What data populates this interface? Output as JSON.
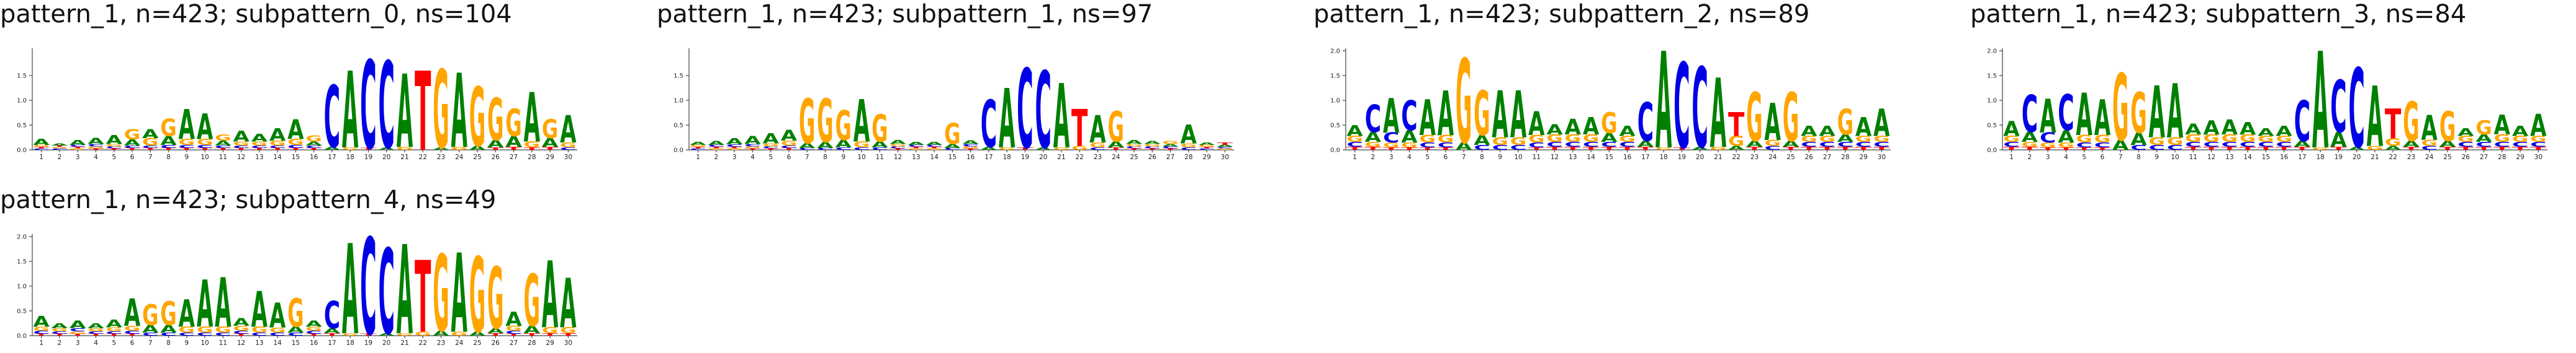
{
  "colors": {
    "A": "#008000",
    "C": "#0000e6",
    "G": "#ffa500",
    "T": "#ff0000"
  },
  "chart_data": [
    {
      "type": "logo",
      "title": "pattern_1, n=423; subpattern_0, ns=104",
      "ylim": [
        0,
        2.0
      ],
      "yticks": [
        "0.0",
        "0.5",
        "1.0",
        "1.5"
      ],
      "positions": [
        "1",
        "2",
        "3",
        "4",
        "5",
        "6",
        "7",
        "8",
        "9",
        "10",
        "11",
        "12",
        "13",
        "14",
        "15",
        "16",
        "17",
        "18",
        "19",
        "20",
        "21",
        "22",
        "23",
        "24",
        "25",
        "26",
        "27",
        "28",
        "29",
        "30"
      ],
      "letters": [
        {
          "A": 0.12,
          "G": 0.04,
          "C": 0.03,
          "T": 0.03
        },
        {
          "A": 0.04,
          "C": 0.03,
          "G": 0.03,
          "T": 0.03
        },
        {
          "A": 0.1,
          "C": 0.04,
          "G": 0.03,
          "T": 0.03
        },
        {
          "A": 0.12,
          "C": 0.05,
          "G": 0.04,
          "T": 0.03
        },
        {
          "A": 0.18,
          "G": 0.05,
          "C": 0.04,
          "T": 0.03
        },
        {
          "G": 0.2,
          "A": 0.12,
          "C": 0.05,
          "T": 0.04
        },
        {
          "A": 0.18,
          "G": 0.15,
          "C": 0.05,
          "T": 0.04
        },
        {
          "G": 0.35,
          "A": 0.18,
          "C": 0.06,
          "T": 0.04
        },
        {
          "A": 0.6,
          "G": 0.12,
          "C": 0.06,
          "T": 0.04
        },
        {
          "A": 0.52,
          "G": 0.12,
          "C": 0.06,
          "T": 0.04
        },
        {
          "G": 0.12,
          "A": 0.1,
          "C": 0.05,
          "T": 0.04
        },
        {
          "A": 0.22,
          "G": 0.08,
          "C": 0.05,
          "T": 0.04
        },
        {
          "A": 0.15,
          "G": 0.08,
          "C": 0.05,
          "T": 0.04
        },
        {
          "A": 0.25,
          "G": 0.1,
          "C": 0.05,
          "T": 0.04
        },
        {
          "A": 0.4,
          "G": 0.12,
          "C": 0.06,
          "T": 0.04
        },
        {
          "G": 0.12,
          "A": 0.08,
          "C": 0.05,
          "T": 0.04
        },
        {
          "C": 1.25,
          "A": 0.06
        },
        {
          "A": 1.55,
          "G": 0.05
        },
        {
          "C": 1.78,
          "T": 0.04
        },
        {
          "C": 1.75,
          "A": 0.05
        },
        {
          "A": 1.48,
          "G": 0.06
        },
        {
          "T": 1.6
        },
        {
          "G": 1.58,
          "A": 0.05
        },
        {
          "A": 1.5,
          "G": 0.06
        },
        {
          "G": 1.2,
          "A": 0.08
        },
        {
          "G": 0.85,
          "A": 0.15,
          "T": 0.05
        },
        {
          "G": 0.55,
          "A": 0.22,
          "T": 0.06
        },
        {
          "A": 1.0,
          "G": 0.12,
          "T": 0.05
        },
        {
          "G": 0.38,
          "A": 0.18,
          "T": 0.06
        },
        {
          "A": 0.55,
          "G": 0.1,
          "C": 0.05
        }
      ]
    },
    {
      "type": "logo",
      "title": "pattern_1, n=423; subpattern_1, ns=97",
      "ylim": [
        0,
        2.0
      ],
      "yticks": [
        "0.0",
        "0.5",
        "1.0",
        "1.5"
      ],
      "positions": [
        "1",
        "2",
        "3",
        "4",
        "5",
        "6",
        "7",
        "8",
        "9",
        "10",
        "11",
        "12",
        "13",
        "14",
        "15",
        "16",
        "17",
        "18",
        "19",
        "20",
        "21",
        "22",
        "23",
        "24",
        "25",
        "26",
        "27",
        "28",
        "29",
        "30"
      ],
      "letters": [
        {
          "A": 0.06,
          "G": 0.04,
          "C": 0.03,
          "T": 0.03
        },
        {
          "A": 0.08,
          "C": 0.04,
          "G": 0.03,
          "T": 0.03
        },
        {
          "A": 0.12,
          "C": 0.05,
          "G": 0.03,
          "T": 0.03
        },
        {
          "A": 0.16,
          "C": 0.05,
          "G": 0.04,
          "T": 0.03
        },
        {
          "A": 0.2,
          "G": 0.06,
          "C": 0.04,
          "T": 0.03
        },
        {
          "A": 0.22,
          "G": 0.1,
          "C": 0.05,
          "T": 0.04
        },
        {
          "G": 0.9,
          "A": 0.1,
          "C": 0.04
        },
        {
          "G": 0.88,
          "A": 0.12,
          "C": 0.04
        },
        {
          "G": 0.6,
          "A": 0.15,
          "C": 0.05
        },
        {
          "A": 0.85,
          "G": 0.12,
          "C": 0.05
        },
        {
          "G": 0.55,
          "A": 0.12,
          "C": 0.05
        },
        {
          "A": 0.08,
          "G": 0.05,
          "C": 0.04,
          "T": 0.03
        },
        {
          "A": 0.06,
          "C": 0.04,
          "G": 0.03,
          "T": 0.03
        },
        {
          "A": 0.06,
          "C": 0.04,
          "G": 0.03,
          "T": 0.03
        },
        {
          "G": 0.42,
          "A": 0.08,
          "C": 0.04
        },
        {
          "A": 0.07,
          "C": 0.05,
          "G": 0.04,
          "T": 0.03
        },
        {
          "C": 0.95,
          "A": 0.06
        },
        {
          "A": 1.2,
          "G": 0.05
        },
        {
          "C": 1.6,
          "T": 0.05
        },
        {
          "C": 1.55,
          "A": 0.05
        },
        {
          "A": 1.3,
          "G": 0.05
        },
        {
          "T": 0.75,
          "G": 0.08
        },
        {
          "A": 0.55,
          "G": 0.1,
          "C": 0.05
        },
        {
          "G": 0.62,
          "A": 0.12,
          "T": 0.05
        },
        {
          "A": 0.08,
          "G": 0.05,
          "C": 0.04,
          "T": 0.03
        },
        {
          "A": 0.06,
          "G": 0.05,
          "C": 0.04,
          "T": 0.03
        },
        {
          "G": 0.06,
          "A": 0.05,
          "C": 0.04,
          "T": 0.03
        },
        {
          "A": 0.38,
          "G": 0.08,
          "C": 0.05
        },
        {
          "A": 0.05,
          "G": 0.04,
          "C": 0.03,
          "T": 0.03
        },
        {
          "T": 0.05,
          "A": 0.04,
          "G": 0.03,
          "C": 0.03
        }
      ]
    },
    {
      "type": "logo",
      "title": "pattern_1, n=423; subpattern_2, ns=89",
      "ylim": [
        0,
        2.0
      ],
      "yticks": [
        "0.0",
        "0.5",
        "1.0",
        "1.5",
        "2.0"
      ],
      "positions": [
        "1",
        "2",
        "3",
        "4",
        "5",
        "6",
        "7",
        "8",
        "9",
        "10",
        "11",
        "12",
        "13",
        "14",
        "15",
        "16",
        "17",
        "18",
        "19",
        "20",
        "21",
        "22",
        "23",
        "24",
        "25",
        "26",
        "27",
        "28",
        "29",
        "30"
      ],
      "letters": [
        {
          "A": 0.22,
          "G": 0.12,
          "C": 0.1,
          "T": 0.06
        },
        {
          "C": 0.55,
          "A": 0.2,
          "G": 0.1,
          "T": 0.06
        },
        {
          "A": 0.7,
          "C": 0.2,
          "G": 0.1,
          "T": 0.05
        },
        {
          "C": 0.6,
          "A": 0.25,
          "G": 0.1,
          "T": 0.05
        },
        {
          "A": 0.72,
          "G": 0.15,
          "C": 0.1,
          "T": 0.05
        },
        {
          "A": 0.9,
          "G": 0.15,
          "C": 0.1,
          "T": 0.05
        },
        {
          "G": 1.7,
          "A": 0.15
        },
        {
          "G": 0.9,
          "A": 0.2,
          "C": 0.1
        },
        {
          "A": 0.95,
          "G": 0.15,
          "C": 0.1
        },
        {
          "A": 0.95,
          "G": 0.15,
          "C": 0.1
        },
        {
          "A": 0.48,
          "G": 0.15,
          "C": 0.1,
          "T": 0.05
        },
        {
          "A": 0.2,
          "G": 0.15,
          "C": 0.1,
          "T": 0.06
        },
        {
          "A": 0.32,
          "G": 0.15,
          "C": 0.1,
          "T": 0.06
        },
        {
          "A": 0.35,
          "G": 0.15,
          "C": 0.1,
          "T": 0.06
        },
        {
          "G": 0.42,
          "A": 0.18,
          "C": 0.1,
          "T": 0.06
        },
        {
          "A": 0.2,
          "G": 0.12,
          "C": 0.1,
          "T": 0.06
        },
        {
          "C": 0.78,
          "A": 0.12,
          "T": 0.06
        },
        {
          "A": 1.95,
          "G": 0.05
        },
        {
          "C": 1.72,
          "T": 0.05
        },
        {
          "C": 1.62,
          "A": 0.06
        },
        {
          "A": 1.4,
          "G": 0.06
        },
        {
          "T": 0.48,
          "G": 0.2,
          "A": 0.08
        },
        {
          "G": 0.98,
          "A": 0.12,
          "T": 0.06
        },
        {
          "A": 0.75,
          "G": 0.12,
          "C": 0.08
        },
        {
          "G": 0.98,
          "A": 0.12,
          "T": 0.06
        },
        {
          "A": 0.2,
          "G": 0.12,
          "C": 0.1,
          "T": 0.06
        },
        {
          "A": 0.2,
          "G": 0.12,
          "C": 0.1,
          "T": 0.06
        },
        {
          "G": 0.52,
          "A": 0.15,
          "C": 0.1,
          "T": 0.06
        },
        {
          "A": 0.38,
          "G": 0.12,
          "C": 0.1,
          "T": 0.06
        },
        {
          "A": 0.55,
          "G": 0.12,
          "C": 0.1,
          "T": 0.06
        }
      ]
    },
    {
      "type": "logo",
      "title": "pattern_1, n=423; subpattern_3, ns=84",
      "ylim": [
        0,
        2.0
      ],
      "yticks": [
        "0.0",
        "0.5",
        "1.0",
        "1.5",
        "2.0"
      ],
      "positions": [
        "1",
        "2",
        "3",
        "4",
        "5",
        "6",
        "7",
        "8",
        "9",
        "10",
        "11",
        "12",
        "13",
        "14",
        "15",
        "16",
        "17",
        "18",
        "19",
        "20",
        "21",
        "22",
        "23",
        "24",
        "25",
        "26",
        "27",
        "28",
        "29",
        "30"
      ],
      "letters": [
        {
          "A": 0.3,
          "G": 0.12,
          "C": 0.1,
          "T": 0.06
        },
        {
          "C": 0.75,
          "A": 0.2,
          "G": 0.1,
          "T": 0.06
        },
        {
          "A": 0.68,
          "C": 0.2,
          "G": 0.1,
          "T": 0.05
        },
        {
          "C": 0.72,
          "A": 0.25,
          "G": 0.1,
          "T": 0.05
        },
        {
          "A": 0.85,
          "G": 0.15,
          "C": 0.1,
          "T": 0.05
        },
        {
          "A": 0.72,
          "G": 0.15,
          "C": 0.1,
          "T": 0.05
        },
        {
          "G": 1.35,
          "A": 0.2
        },
        {
          "G": 0.82,
          "A": 0.25,
          "C": 0.1
        },
        {
          "A": 1.05,
          "G": 0.15,
          "C": 0.1
        },
        {
          "A": 1.1,
          "G": 0.15,
          "C": 0.1
        },
        {
          "A": 0.22,
          "G": 0.15,
          "C": 0.1,
          "T": 0.06
        },
        {
          "A": 0.28,
          "G": 0.15,
          "C": 0.1,
          "T": 0.06
        },
        {
          "A": 0.3,
          "G": 0.15,
          "C": 0.1,
          "T": 0.06
        },
        {
          "A": 0.25,
          "G": 0.15,
          "C": 0.1,
          "T": 0.06
        },
        {
          "A": 0.15,
          "G": 0.12,
          "C": 0.1,
          "T": 0.06
        },
        {
          "A": 0.2,
          "G": 0.12,
          "C": 0.1,
          "T": 0.06
        },
        {
          "C": 0.82,
          "A": 0.12,
          "T": 0.06
        },
        {
          "A": 1.95,
          "G": 0.05
        },
        {
          "C": 1.05,
          "A": 0.3,
          "T": 0.06
        },
        {
          "C": 1.6,
          "A": 0.06
        },
        {
          "A": 1.22,
          "G": 0.08
        },
        {
          "T": 0.6,
          "G": 0.15,
          "A": 0.08
        },
        {
          "G": 0.8,
          "A": 0.12,
          "T": 0.06
        },
        {
          "A": 0.5,
          "G": 0.12,
          "C": 0.08
        },
        {
          "G": 0.6,
          "A": 0.12,
          "T": 0.06
        },
        {
          "A": 0.15,
          "G": 0.12,
          "C": 0.1,
          "T": 0.06
        },
        {
          "G": 0.28,
          "A": 0.15,
          "C": 0.1,
          "T": 0.06
        },
        {
          "A": 0.4,
          "G": 0.15,
          "C": 0.1,
          "T": 0.06
        },
        {
          "A": 0.2,
          "G": 0.12,
          "C": 0.1,
          "T": 0.06
        },
        {
          "A": 0.45,
          "G": 0.12,
          "C": 0.1,
          "T": 0.06
        }
      ]
    },
    {
      "type": "logo",
      "title": "pattern_1, n=423; subpattern_4, ns=49",
      "ylim": [
        0,
        2.0
      ],
      "yticks": [
        "0.0",
        "0.5",
        "1.0",
        "1.5",
        "2.0"
      ],
      "positions": [
        "1",
        "2",
        "3",
        "4",
        "5",
        "6",
        "7",
        "8",
        "9",
        "10",
        "11",
        "12",
        "13",
        "14",
        "15",
        "16",
        "17",
        "18",
        "19",
        "20",
        "21",
        "22",
        "23",
        "24",
        "25",
        "26",
        "27",
        "28",
        "29",
        "30"
      ],
      "letters": [
        {
          "A": 0.22,
          "G": 0.08,
          "C": 0.06,
          "T": 0.04
        },
        {
          "A": 0.1,
          "G": 0.06,
          "C": 0.05,
          "T": 0.04
        },
        {
          "A": 0.15,
          "C": 0.06,
          "G": 0.05,
          "T": 0.04
        },
        {
          "A": 0.1,
          "G": 0.06,
          "C": 0.05,
          "T": 0.04
        },
        {
          "A": 0.15,
          "G": 0.08,
          "C": 0.05,
          "T": 0.04
        },
        {
          "A": 0.55,
          "G": 0.1,
          "C": 0.06,
          "T": 0.04
        },
        {
          "G": 0.42,
          "A": 0.15,
          "C": 0.06
        },
        {
          "G": 0.48,
          "A": 0.15,
          "C": 0.06
        },
        {
          "A": 0.55,
          "G": 0.12,
          "C": 0.06
        },
        {
          "A": 0.95,
          "G": 0.12,
          "C": 0.06
        },
        {
          "A": 1.0,
          "G": 0.12,
          "C": 0.06
        },
        {
          "A": 0.15,
          "G": 0.1,
          "C": 0.06,
          "T": 0.04
        },
        {
          "A": 0.72,
          "G": 0.12,
          "C": 0.06
        },
        {
          "A": 0.5,
          "G": 0.1,
          "C": 0.06
        },
        {
          "G": 0.58,
          "A": 0.12,
          "C": 0.06
        },
        {
          "A": 0.12,
          "G": 0.08,
          "C": 0.06,
          "T": 0.04
        },
        {
          "C": 0.55,
          "A": 0.1,
          "T": 0.05
        },
        {
          "A": 1.82,
          "G": 0.05
        },
        {
          "C": 1.95,
          "T": 0.04
        },
        {
          "C": 1.72,
          "A": 0.05
        },
        {
          "A": 1.8,
          "G": 0.05
        },
        {
          "T": 1.45,
          "G": 0.08
        },
        {
          "G": 1.55,
          "A": 0.1
        },
        {
          "A": 1.6,
          "G": 0.08
        },
        {
          "G": 1.52,
          "A": 0.08
        },
        {
          "G": 1.25,
          "A": 0.1,
          "T": 0.05
        },
        {
          "A": 0.28,
          "G": 0.1,
          "C": 0.06,
          "T": 0.04
        },
        {
          "G": 1.05,
          "A": 0.15,
          "T": 0.05
        },
        {
          "A": 1.35,
          "G": 0.12,
          "T": 0.05
        },
        {
          "A": 1.0,
          "G": 0.12,
          "T": 0.05
        }
      ]
    }
  ]
}
